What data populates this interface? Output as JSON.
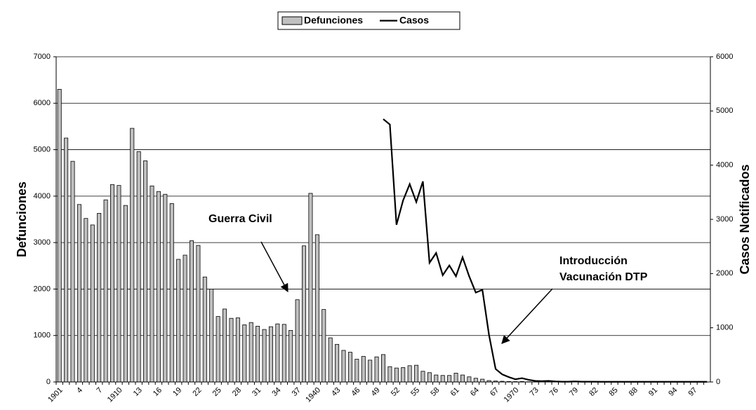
{
  "chart_data": {
    "type": "bar-line",
    "categories": [
      "1901",
      null,
      null,
      "4",
      null,
      null,
      "7",
      null,
      null,
      "1910",
      null,
      null,
      "13",
      null,
      null,
      "16",
      null,
      null,
      "19",
      null,
      null,
      "22",
      null,
      null,
      "25",
      null,
      null,
      "28",
      null,
      null,
      "31",
      null,
      null,
      "34",
      null,
      null,
      "37",
      null,
      null,
      "1940",
      null,
      null,
      "43",
      null,
      null,
      "46",
      null,
      null,
      "49",
      null,
      null,
      "52",
      null,
      null,
      "55",
      null,
      null,
      "58",
      null,
      null,
      "61",
      null,
      null,
      "64",
      null,
      null,
      "67",
      null,
      null,
      "1970",
      null,
      null,
      "73",
      null,
      null,
      "76",
      null,
      null,
      "79",
      null,
      null,
      "82",
      null,
      null,
      "85",
      null,
      null,
      "88",
      null,
      null,
      "91",
      null,
      null,
      "94",
      null,
      null,
      "97",
      null,
      null
    ],
    "series": [
      {
        "name": "Defunciones",
        "type": "bar",
        "color": "#c0c0c0",
        "values": [
          6300,
          5250,
          4750,
          3820,
          3520,
          3380,
          3630,
          3920,
          4250,
          4230,
          3800,
          5460,
          4960,
          4760,
          4220,
          4100,
          4040,
          3840,
          2640,
          2730,
          3040,
          2940,
          2260,
          2000,
          1410,
          1570,
          1370,
          1380,
          1230,
          1280,
          1200,
          1130,
          1190,
          1250,
          1240,
          1110,
          1770,
          2930,
          4060,
          3170,
          1560,
          950,
          810,
          680,
          640,
          490,
          550,
          470,
          540,
          590,
          330,
          300,
          310,
          350,
          360,
          230,
          200,
          150,
          140,
          140,
          190,
          150,
          110,
          80,
          60,
          30,
          20,
          15,
          10,
          8,
          10,
          5,
          5,
          5,
          3,
          3,
          2,
          2,
          2,
          1,
          1,
          1,
          1,
          1,
          1,
          0,
          0,
          0,
          0,
          0,
          0,
          0,
          0,
          0,
          0,
          0,
          0,
          0,
          0
        ]
      },
      {
        "name": "Casos",
        "type": "line",
        "axis": "y2",
        "color": "#000000",
        "values": [
          null,
          null,
          null,
          null,
          null,
          null,
          null,
          null,
          null,
          null,
          null,
          null,
          null,
          null,
          null,
          null,
          null,
          null,
          null,
          null,
          null,
          null,
          null,
          null,
          null,
          null,
          null,
          null,
          null,
          null,
          null,
          null,
          null,
          null,
          null,
          null,
          null,
          null,
          null,
          null,
          null,
          null,
          null,
          null,
          null,
          null,
          null,
          null,
          null,
          4850,
          4750,
          2900,
          3350,
          3650,
          3320,
          3700,
          2200,
          2380,
          1970,
          2150,
          1950,
          2300,
          1950,
          1650,
          1700,
          870,
          240,
          140,
          90,
          50,
          70,
          40,
          20,
          15,
          20,
          10,
          5,
          5,
          10,
          5,
          5,
          5,
          3,
          3,
          3,
          3,
          3,
          3,
          3,
          3,
          3,
          3,
          3,
          3,
          3,
          3,
          3,
          3,
          3
        ]
      }
    ],
    "ylabel": "Defunciones",
    "y2label": "Casos Notificados",
    "ylim": [
      0,
      7000
    ],
    "yticks": [
      0,
      1000,
      2000,
      3000,
      4000,
      5000,
      6000,
      7000
    ],
    "y2lim": [
      0,
      6000
    ],
    "y2ticks": [
      0,
      1000,
      2000,
      3000,
      4000,
      5000,
      6000
    ],
    "grid": true,
    "legend": "top",
    "annotations": [
      "Guerra Civil",
      "Introducción",
      "Vacunación DTP"
    ]
  }
}
